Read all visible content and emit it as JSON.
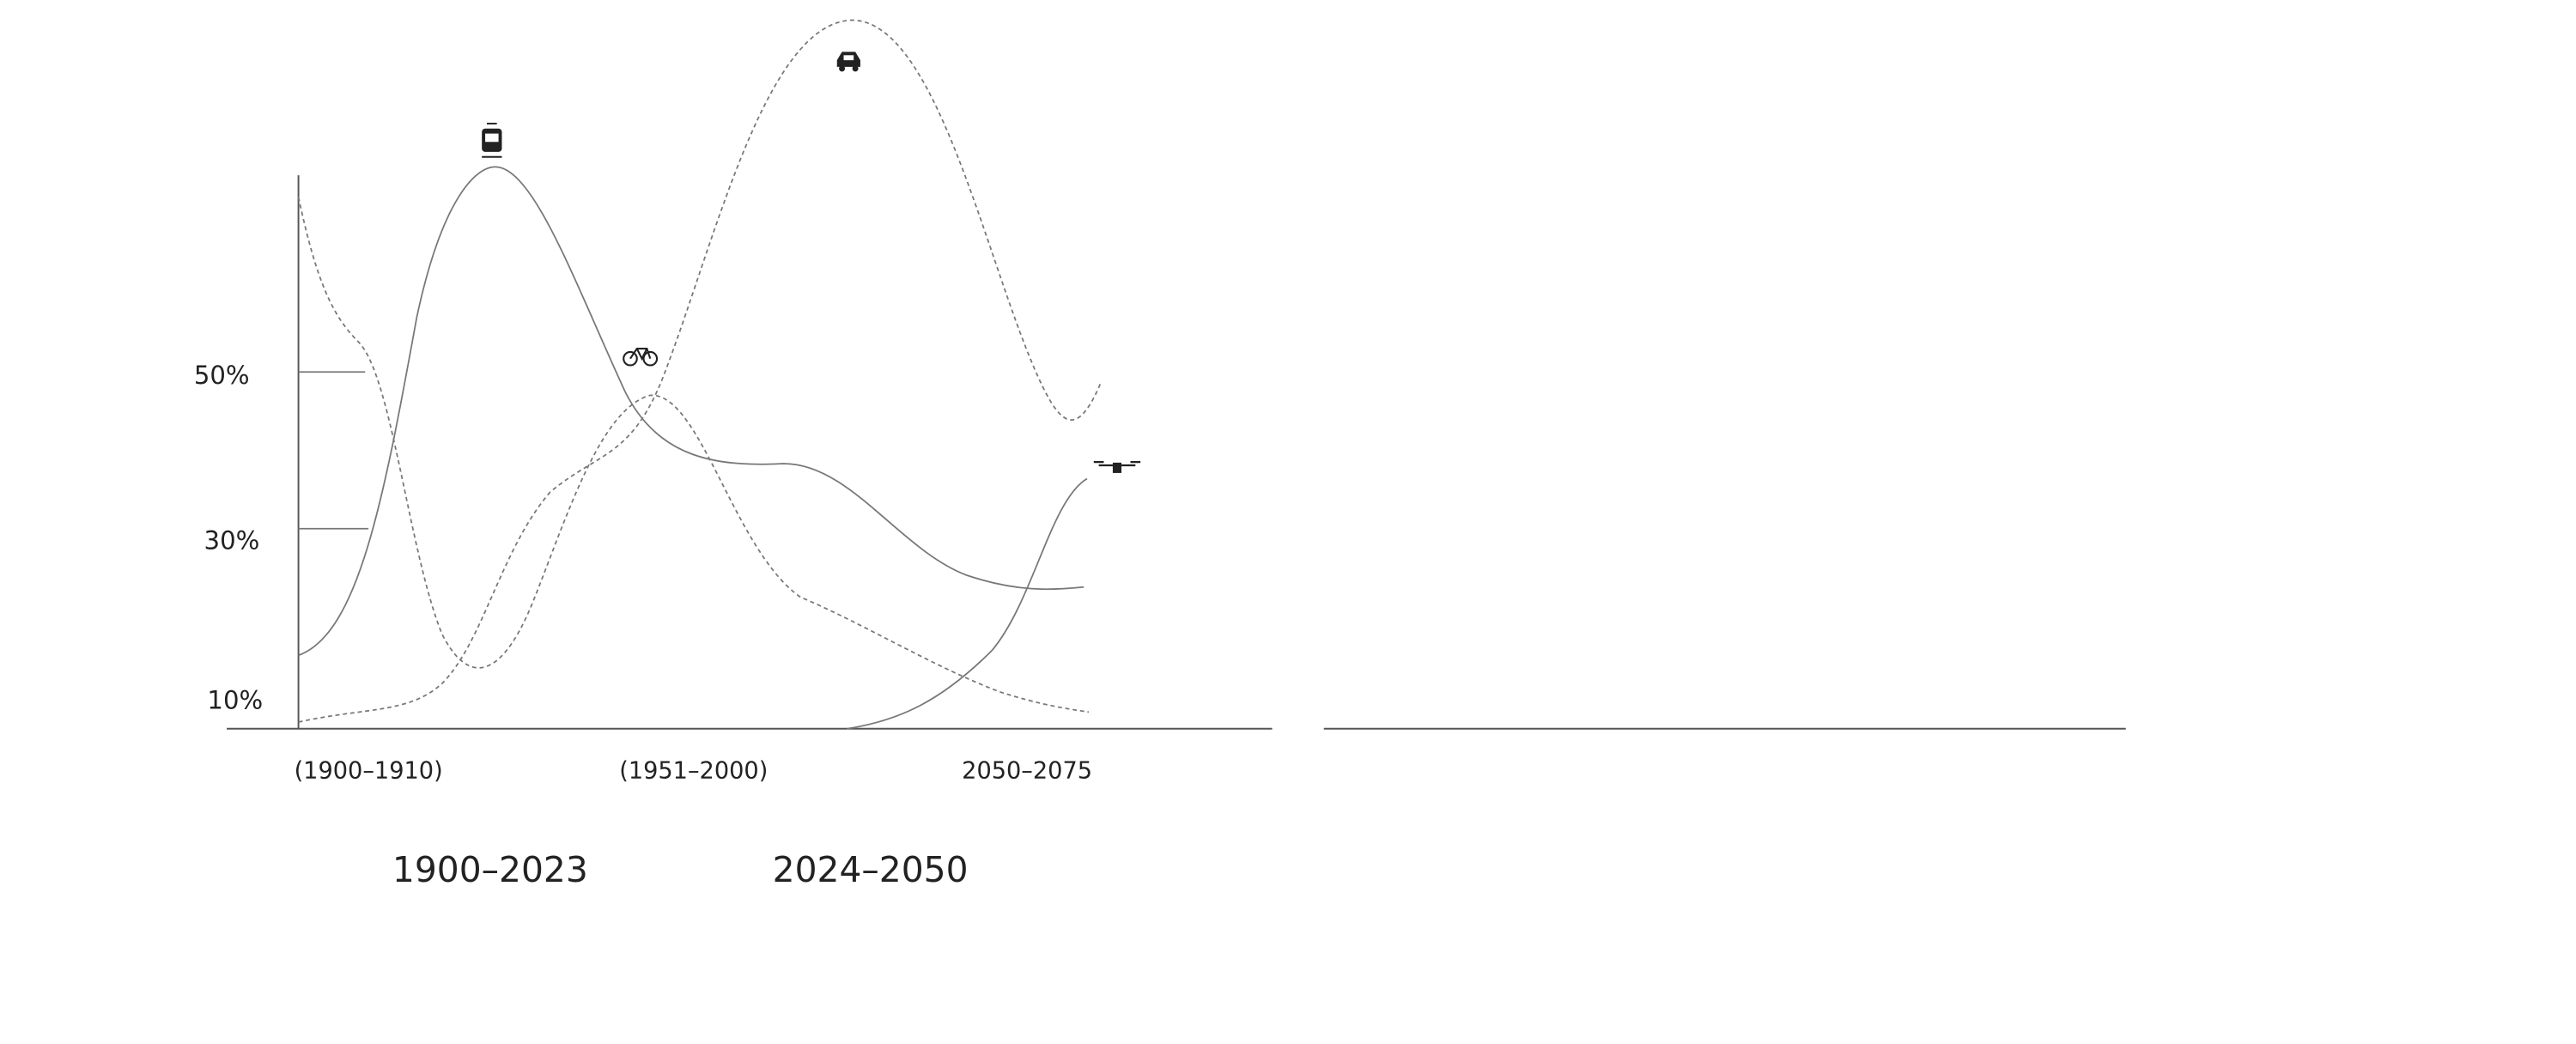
{
  "y_labels": [
    "50%",
    "30%",
    "10%"
  ],
  "period_labels": [
    "(1900–1910)",
    "(1951–2000)",
    "2050–2075"
  ],
  "era_labels": [
    "1900–2023",
    "2024–2050"
  ]
}
